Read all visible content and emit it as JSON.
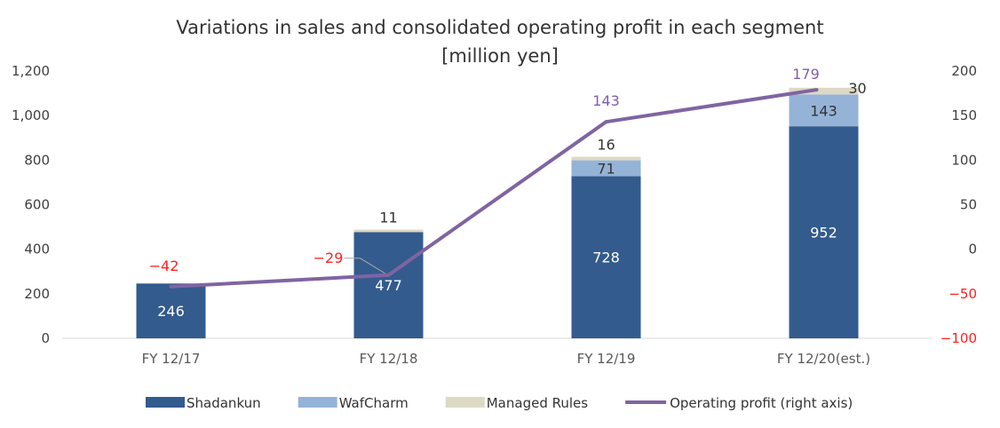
{
  "chart_data": {
    "type": "bar",
    "title": "Variations in sales and consolidated operating profit in each segment",
    "subtitle": "[million yen]",
    "categories": [
      "FY 12/17",
      "FY 12/18",
      "FY 12/19",
      "FY 12/20(est.)"
    ],
    "series": [
      {
        "name": "Shadankun",
        "type": "bar",
        "axis": "left",
        "color": "#335b8e",
        "values": [
          246,
          477,
          728,
          952
        ]
      },
      {
        "name": "WafCharm",
        "type": "bar",
        "axis": "left",
        "color": "#95b3d7",
        "values": [
          0,
          0,
          71,
          143
        ]
      },
      {
        "name": "Managed Rules",
        "type": "bar",
        "axis": "left",
        "color": "#ddd9c4",
        "values": [
          0,
          11,
          16,
          30
        ]
      },
      {
        "name": "Operating profit (right axis)",
        "type": "line",
        "axis": "right",
        "color": "#8064a2",
        "values": [
          -42,
          -29,
          143,
          179
        ]
      }
    ],
    "data_labels": {
      "Shadankun": [
        "246",
        "477",
        "728",
        "952"
      ],
      "WafCharm": [
        "",
        "",
        "71",
        "143"
      ],
      "Managed Rules": [
        "",
        "11",
        "16",
        "30"
      ],
      "Operating profit (right axis)": [
        "−42",
        "−29",
        "143",
        "179"
      ]
    },
    "y_left": {
      "ylim": [
        0,
        1200
      ],
      "ticks": [
        "0",
        "200",
        "400",
        "600",
        "800",
        "1,000",
        "1,200"
      ]
    },
    "y_right": {
      "ylim": [
        -100,
        200
      ],
      "ticks": [
        "−100",
        "−50",
        "0",
        "50",
        "100",
        "150",
        "200"
      ]
    },
    "grid": false,
    "legend_position": "bottom",
    "colors": {
      "negative": "#ff2020",
      "profit_label": "#7f5fa8",
      "axis": "#d9d9d9"
    }
  }
}
